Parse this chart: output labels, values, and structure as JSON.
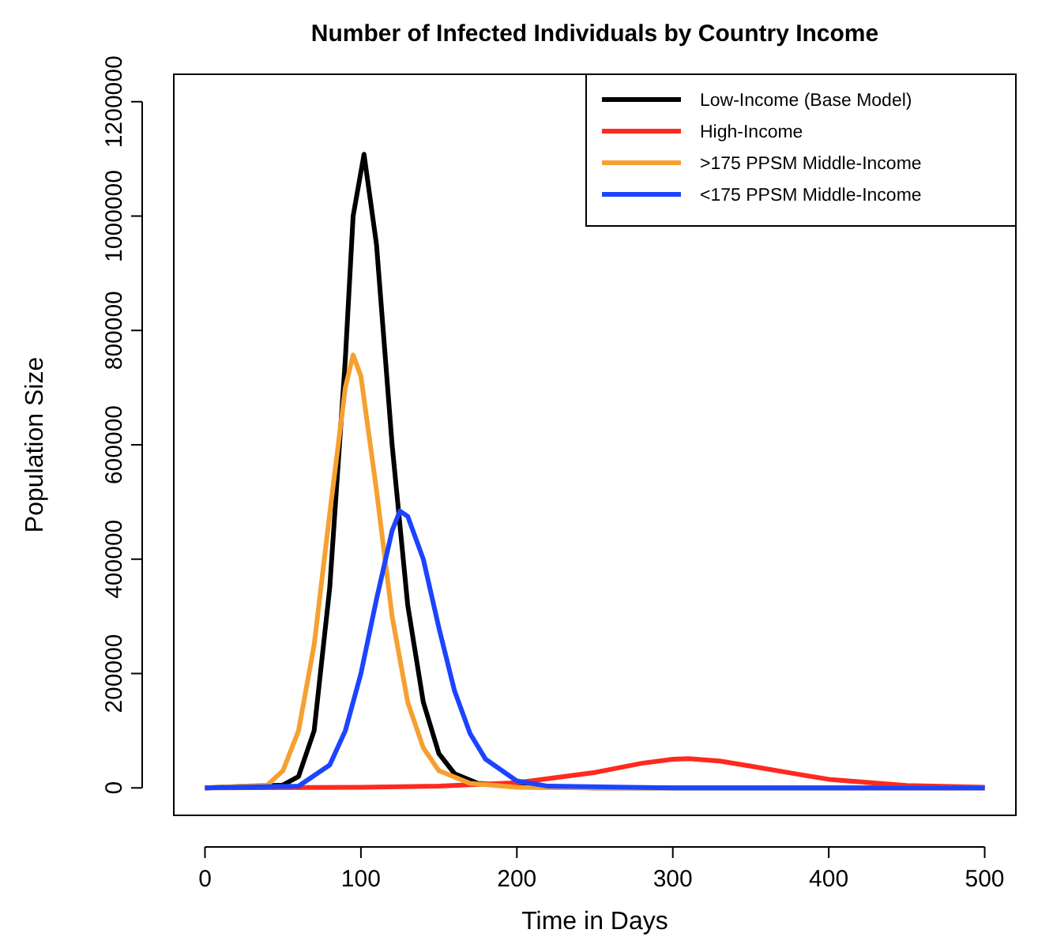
{
  "chart_data": {
    "type": "line",
    "title": "Number of Infected Individuals by Country Income",
    "xlabel": "Time in Days",
    "ylabel": "Population Size",
    "xlim": [
      -20,
      520
    ],
    "ylim": [
      -48000,
      1248000
    ],
    "xticks": [
      0,
      100,
      200,
      300,
      400,
      500
    ],
    "yticks": [
      0,
      200000,
      400000,
      600000,
      800000,
      1000000,
      1200000
    ],
    "grid": false,
    "legend": "top right",
    "marker": "none",
    "line_style": "solid",
    "series": [
      {
        "name": "Low-Income (Base Model)",
        "color": "#000000",
        "x": [
          0,
          50,
          60,
          70,
          80,
          90,
          95,
          102,
          110,
          120,
          130,
          140,
          150,
          160,
          175,
          200,
          250,
          500
        ],
        "values": [
          0,
          5000,
          20000,
          100000,
          350000,
          750000,
          1000000,
          1108000,
          950000,
          600000,
          320000,
          150000,
          60000,
          25000,
          8000,
          2000,
          0,
          0
        ]
      },
      {
        "name": "High-Income",
        "color": "#ff2a1f",
        "x": [
          0,
          100,
          150,
          200,
          250,
          280,
          300,
          310,
          330,
          350,
          380,
          400,
          450,
          500
        ],
        "values": [
          0,
          1000,
          3000,
          9000,
          27000,
          43000,
          50000,
          51000,
          47000,
          38000,
          24000,
          15000,
          4000,
          1000
        ]
      },
      {
        "name": ">175 PPSM Middle-Income",
        "color": "#f5a030",
        "x": [
          0,
          40,
          50,
          60,
          70,
          80,
          90,
          95,
          100,
          110,
          120,
          130,
          140,
          150,
          170,
          200,
          250,
          500
        ],
        "values": [
          0,
          5000,
          30000,
          100000,
          250000,
          480000,
          700000,
          757000,
          720000,
          520000,
          300000,
          150000,
          70000,
          30000,
          8000,
          1000,
          0,
          0
        ]
      },
      {
        "name": "<175 PPSM Middle-Income",
        "color": "#1c44ff",
        "x": [
          0,
          60,
          80,
          90,
          100,
          110,
          120,
          125,
          130,
          140,
          150,
          160,
          170,
          180,
          200,
          220,
          300,
          500
        ],
        "values": [
          0,
          3000,
          40000,
          100000,
          200000,
          330000,
          450000,
          484000,
          475000,
          400000,
          280000,
          170000,
          95000,
          50000,
          12000,
          3000,
          0,
          0
        ]
      }
    ]
  }
}
